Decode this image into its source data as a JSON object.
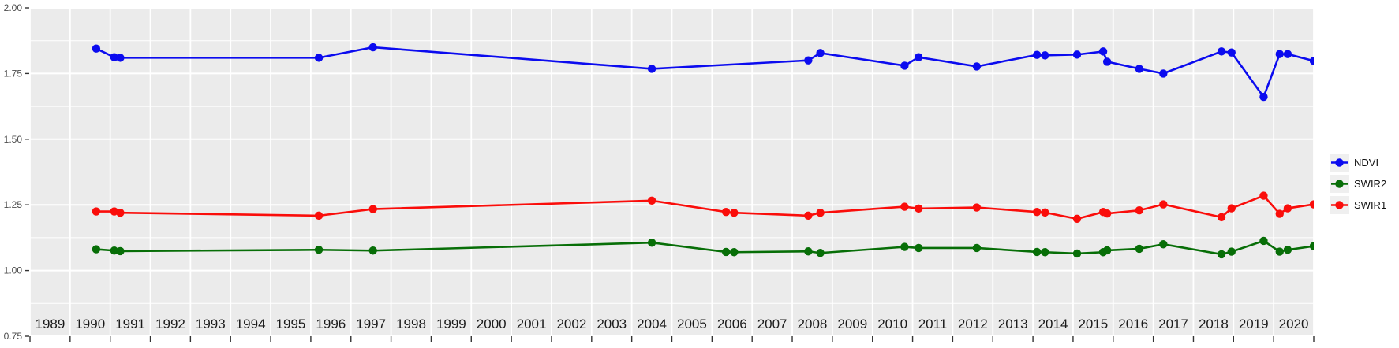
{
  "figure": {
    "background": "#ffffff",
    "panel_background": "#ebebeb",
    "grid_color": "#ffffff",
    "tick_color": "#333333",
    "y_axis_text_color": "#4d4d4d",
    "x_axis_text_color": "#1a1a1a",
    "legend_key_background": "#efefef"
  },
  "chart_data": {
    "type": "line",
    "title": "",
    "xlabel": "",
    "ylabel": "",
    "grid": "on",
    "legend_position": "right",
    "x_axis": {
      "range": [
        1988.5,
        2020.5
      ],
      "tick_step": 1,
      "labels": [
        "1989",
        "1990",
        "1991",
        "1992",
        "1993",
        "1994",
        "1995",
        "1996",
        "1997",
        "1998",
        "1999",
        "2000",
        "2001",
        "2002",
        "2003",
        "2004",
        "2005",
        "2006",
        "2007",
        "2008",
        "2009",
        "2010",
        "2011",
        "2012",
        "2013",
        "2014",
        "2015",
        "2016",
        "2017",
        "2018",
        "2019",
        "2020"
      ]
    },
    "y_axis": {
      "range": [
        0.75,
        2.0
      ],
      "tick_values": [
        2.0,
        1.75,
        1.5,
        1.25,
        1.0,
        0.75
      ],
      "tick_labels": [
        "2.00",
        "1.75",
        "1.50",
        "1.25",
        "1.00",
        "0.75"
      ],
      "minor_step": 0.125
    },
    "series": [
      {
        "name": "NDVI",
        "color": "#0b0bef",
        "x": [
          1990.15,
          1990.6,
          1990.75,
          1995.7,
          1997.05,
          2004.0,
          2007.9,
          2008.2,
          2010.3,
          2010.65,
          2012.1,
          2013.6,
          2013.8,
          2014.6,
          2015.25,
          2015.35,
          2016.15,
          2016.75,
          2018.2,
          2018.45,
          2019.25,
          2019.65,
          2019.85,
          2020.5
        ],
        "values": [
          1.845,
          1.812,
          1.81,
          1.81,
          1.85,
          1.768,
          1.8,
          1.828,
          1.78,
          1.812,
          1.777,
          1.821,
          1.819,
          1.822,
          1.834,
          1.795,
          1.768,
          1.75,
          1.834,
          1.83,
          1.661,
          1.824,
          1.824,
          1.798
        ]
      },
      {
        "name": "SWIR2",
        "color": "#076e07",
        "x": [
          1990.15,
          1990.6,
          1990.75,
          1995.7,
          1997.05,
          2004.0,
          2005.85,
          2006.05,
          2007.9,
          2008.2,
          2010.3,
          2010.65,
          2012.1,
          2013.6,
          2013.8,
          2014.6,
          2015.25,
          2015.35,
          2016.15,
          2016.75,
          2018.2,
          2018.45,
          2019.25,
          2019.65,
          2019.85,
          2020.5
        ],
        "values": [
          1.081,
          1.076,
          1.074,
          1.079,
          1.076,
          1.106,
          1.071,
          1.07,
          1.073,
          1.067,
          1.09,
          1.086,
          1.086,
          1.071,
          1.07,
          1.065,
          1.07,
          1.077,
          1.083,
          1.1,
          1.062,
          1.072,
          1.113,
          1.072,
          1.079,
          1.093
        ]
      },
      {
        "name": "SWIR1",
        "color": "#fa0d0a",
        "x": [
          1990.15,
          1990.6,
          1990.75,
          1995.7,
          1997.05,
          2004.0,
          2005.85,
          2006.05,
          2007.9,
          2008.2,
          2010.3,
          2010.65,
          2012.1,
          2013.6,
          2013.8,
          2014.6,
          2015.25,
          2015.35,
          2016.15,
          2016.75,
          2018.2,
          2018.45,
          2019.25,
          2019.65,
          2019.85,
          2020.5
        ],
        "values": [
          1.225,
          1.225,
          1.22,
          1.209,
          1.234,
          1.266,
          1.223,
          1.22,
          1.209,
          1.22,
          1.243,
          1.236,
          1.24,
          1.223,
          1.221,
          1.197,
          1.223,
          1.217,
          1.229,
          1.252,
          1.203,
          1.237,
          1.285,
          1.216,
          1.237,
          1.252
        ]
      }
    ]
  }
}
